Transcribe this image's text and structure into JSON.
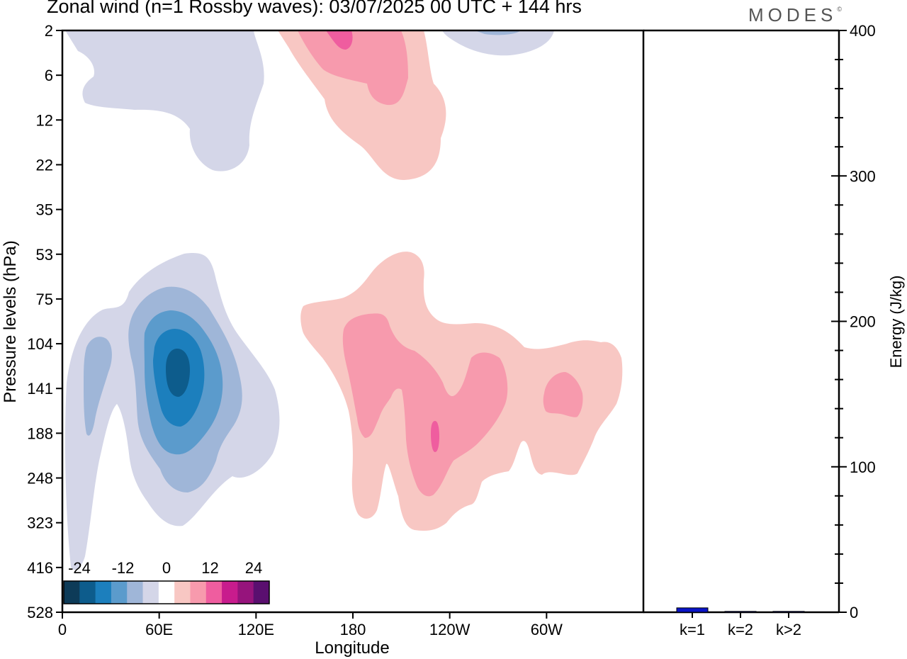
{
  "title": "Zonal wind (n=1 Rossby waves):  03/07/2025  00 UTC  + 144 hrs",
  "brand": "MODES",
  "brand_mark": "©",
  "chart_data": [
    {
      "type": "heatmap",
      "title": "Zonal wind (n=1 Rossby waves):  03/07/2025  00 UTC  + 144 hrs",
      "xlabel": "Longitude",
      "ylabel": "Pressure levels (hPa)",
      "x_ticks": [
        "0",
        "60E",
        "120E",
        "180",
        "120W",
        "60W"
      ],
      "y_ticks": [
        "2",
        "6",
        "12",
        "22",
        "35",
        "53",
        "75",
        "104",
        "141",
        "188",
        "248",
        "323",
        "416",
        "528"
      ],
      "colorbar": {
        "labels": [
          "-24",
          "-12",
          "0",
          "12",
          "24"
        ],
        "colors": [
          "#0d3b58",
          "#0d5c8c",
          "#1c7fbd",
          "#5b9bcc",
          "#9fb6d8",
          "#d4d6e8",
          "#ffffff",
          "#f8c7c3",
          "#f79aad",
          "#ef5d9f",
          "#c81c8d",
          "#96147c",
          "#5a0f6f"
        ]
      },
      "regions": [
        {
          "level": -1,
          "color": "#d4d6e8",
          "name": "upper-negative-region"
        },
        {
          "level": -1,
          "color": "#d4d6e8",
          "name": "upper-dateline-negative-region"
        },
        {
          "level": -2,
          "color": "#9fb6d8",
          "name": "upper-dateline-negative-core"
        },
        {
          "level": 1,
          "color": "#f8c7c3",
          "name": "upper-positive-region"
        },
        {
          "level": 2,
          "color": "#f79aad",
          "name": "upper-positive-core"
        },
        {
          "level": 3,
          "color": "#ef5d9f",
          "name": "upper-positive-peak"
        },
        {
          "level": -1,
          "color": "#d4d6e8",
          "name": "lower-negative-region"
        },
        {
          "level": -2,
          "color": "#9fb6d8",
          "name": "lower-negative-inner"
        },
        {
          "level": -2,
          "color": "#9fb6d8",
          "name": "lower-negative-west-lobe"
        },
        {
          "level": -3,
          "color": "#5b9bcc",
          "name": "lower-negative-core"
        },
        {
          "level": -4,
          "color": "#1c7fbd",
          "name": "lower-negative-strong"
        },
        {
          "level": -5,
          "color": "#0d5c8c",
          "name": "lower-negative-peak"
        },
        {
          "level": 1,
          "color": "#f8c7c3",
          "name": "lower-positive-region"
        },
        {
          "level": 2,
          "color": "#f79aad",
          "name": "lower-positive-core"
        },
        {
          "level": 2,
          "color": "#f79aad",
          "name": "lower-positive-east-core"
        },
        {
          "level": 3,
          "color": "#ef5d9f",
          "name": "lower-positive-peak"
        }
      ]
    },
    {
      "type": "bar",
      "ylabel": "Energy (J/kg)",
      "categories": [
        "k=1",
        "k=2",
        "k>2"
      ],
      "values": [
        3,
        0.3,
        0.5
      ],
      "ylim": [
        0,
        400
      ],
      "y_ticks": [
        "0",
        "100",
        "200",
        "300",
        "400"
      ],
      "bar_color": "#0a14c8"
    }
  ]
}
